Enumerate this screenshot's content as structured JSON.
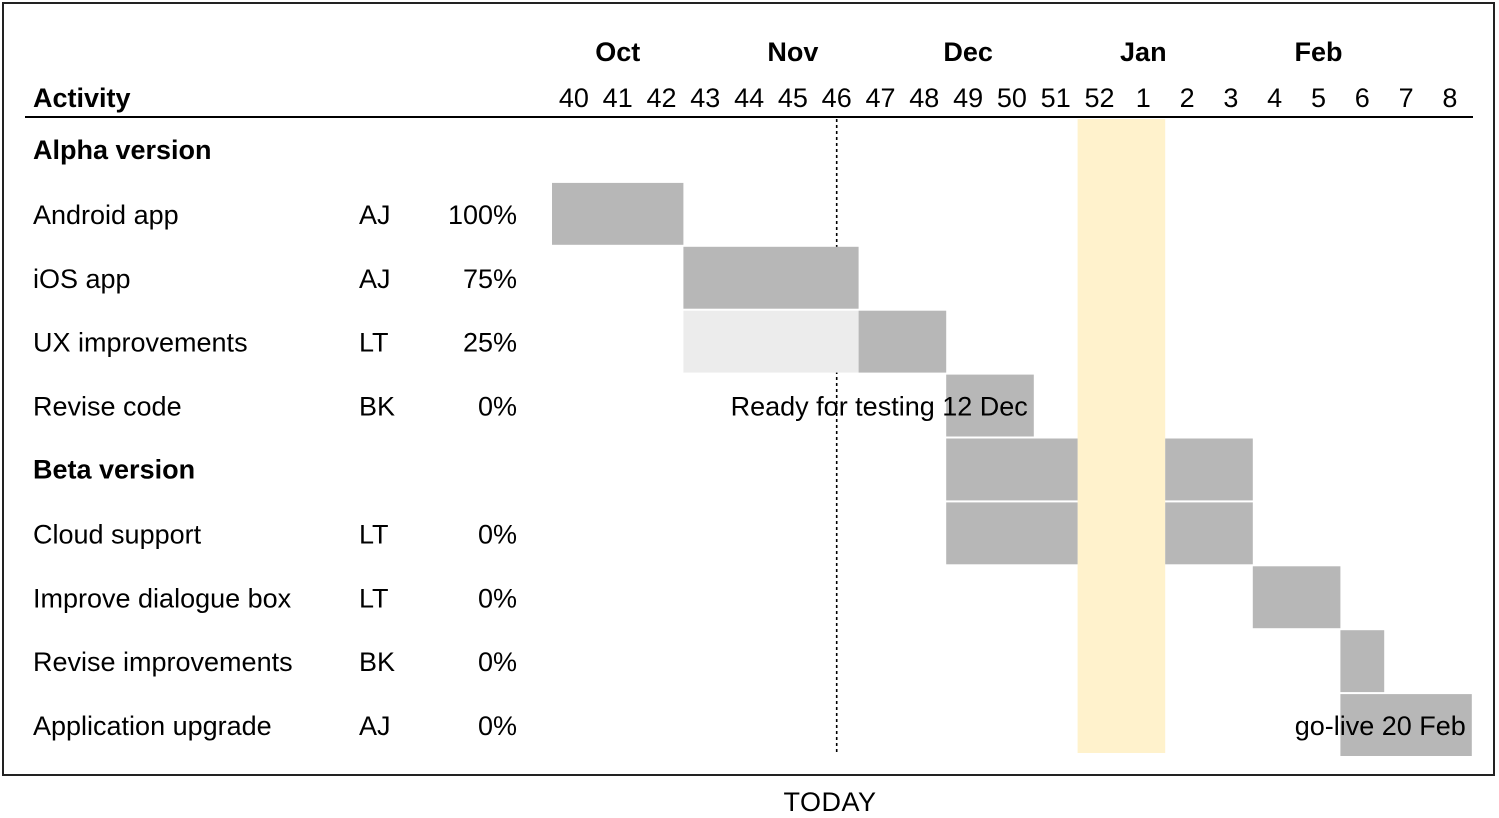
{
  "chart_data": {
    "type": "gantt",
    "header": {
      "activity": "Activity"
    },
    "months": [
      {
        "label": "Oct",
        "week": 41
      },
      {
        "label": "Nov",
        "week": 45
      },
      {
        "label": "Dec",
        "week": 49
      },
      {
        "label": "Jan",
        "week": 1
      },
      {
        "label": "Feb",
        "week": 5
      }
    ],
    "weeks": [
      "40",
      "41",
      "42",
      "43",
      "44",
      "45",
      "46",
      "47",
      "48",
      "49",
      "50",
      "51",
      "52",
      "1",
      "2",
      "3",
      "4",
      "5",
      "6",
      "7",
      "8"
    ],
    "holiday_weeks": [
      "52",
      "1"
    ],
    "today_week": "46",
    "today_label": "TODAY",
    "rows": [
      {
        "type": "section",
        "label": "Alpha version"
      },
      {
        "type": "task",
        "label": "Android app",
        "owner": "AJ",
        "progress": "100%",
        "bars": [
          {
            "start": "40",
            "end": "42"
          }
        ]
      },
      {
        "type": "task",
        "label": "iOS app",
        "owner": "AJ",
        "progress": "75%",
        "bars": [
          {
            "start": "43",
            "end": "46"
          }
        ]
      },
      {
        "type": "task",
        "label": "UX improvements",
        "owner": "LT",
        "progress": "25%",
        "bars": [
          {
            "start": "43",
            "end": "46",
            "shade": "light"
          },
          {
            "start": "47",
            "end": "48"
          }
        ]
      },
      {
        "type": "task",
        "label": "Revise code",
        "owner": "BK",
        "progress": "0%",
        "bars": [
          {
            "start": "49",
            "end": "50"
          }
        ]
      },
      {
        "type": "section",
        "label": "Beta version",
        "bars": [
          {
            "start": "49",
            "end": "51"
          },
          {
            "start": "2",
            "end": "3"
          }
        ]
      },
      {
        "type": "task",
        "label": "Cloud support",
        "owner": "LT",
        "progress": "0%",
        "bars": [
          {
            "start": "49",
            "end": "51"
          },
          {
            "start": "2",
            "end": "3"
          }
        ]
      },
      {
        "type": "task",
        "label": "Improve dialogue box",
        "owner": "LT",
        "progress": "0%",
        "bars": [
          {
            "start": "4",
            "end": "5"
          }
        ]
      },
      {
        "type": "task",
        "label": "Revise improvements",
        "owner": "BK",
        "progress": "0%",
        "bars": [
          {
            "start": "6",
            "end": "6"
          }
        ]
      },
      {
        "type": "task",
        "label": "Application upgrade",
        "owner": "AJ",
        "progress": "0%",
        "bars": [
          {
            "start": "6",
            "end": "8"
          }
        ]
      }
    ],
    "milestones": [
      {
        "row": 4,
        "text": "Ready for testing 12 Dec",
        "end_week": "50"
      },
      {
        "row": 9,
        "text": "go-live 20 Feb",
        "end_week": "8"
      }
    ],
    "colors": {
      "bar": "#b7b7b7",
      "bar_light": "#ececec",
      "holiday": "#fff2cc",
      "today_line": "#000000"
    }
  }
}
